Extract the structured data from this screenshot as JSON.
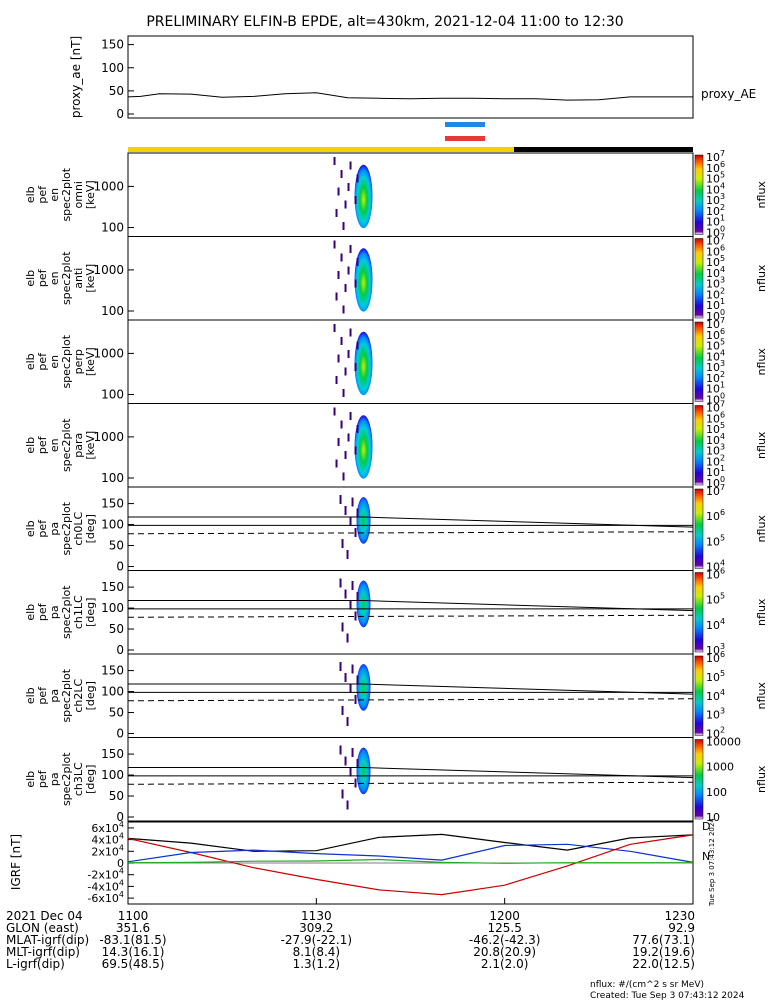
{
  "title": "PRELIMINARY ELFIN-B EPDE, alt=430km, 2021-12-04 11:00 to 12:30",
  "footer": {
    "line1": "nflux: #/(cm^2 s sr MeV)",
    "line2": "Created: Tue Sep  3 07:43:12 2024"
  },
  "side_stamp": "Tue Sep  3 07:43:12 2024",
  "colors": {
    "sci_zone_blue": "#1e88e5",
    "sci_zone_red": "#e53935",
    "orbit_day": "#f5d000",
    "orbit_night": "#000000",
    "igrf_black": "#000000",
    "igrf_red": "#cc0000",
    "igrf_blue": "#1030cc",
    "igrf_green": "#22aa22"
  },
  "chart_data": [
    {
      "type": "line",
      "panel": "proxy_ae",
      "ylabel": "proxy_ae [nT]",
      "yticks": [
        "0",
        "50",
        "100",
        "150"
      ],
      "ylim": [
        0,
        160
      ],
      "legend": "proxy_AE",
      "series": [
        {
          "name": "proxy_AE",
          "x": [
            0,
            2,
            5,
            10,
            15,
            20,
            25,
            30,
            35,
            40,
            45,
            50,
            55,
            60,
            65,
            70,
            75,
            80,
            85,
            90
          ],
          "values": [
            37,
            38,
            44,
            43,
            36,
            38,
            44,
            46,
            35,
            34,
            33,
            34,
            34,
            33,
            33,
            30,
            31,
            37,
            37,
            37
          ]
        }
      ]
    },
    {
      "type": "heatmap",
      "panel": "omni",
      "ylabel": "elb pef en spec2plot omni [keV]",
      "yticks": [
        "100",
        "1000"
      ],
      "colorbar": {
        "label": "nflux",
        "ticks": [
          "10^0",
          "10^1",
          "10^2",
          "10^3",
          "10^4",
          "10^5",
          "10^6",
          "10^7"
        ],
        "log_range": [
          0,
          7
        ]
      }
    },
    {
      "type": "heatmap",
      "panel": "anti",
      "ylabel": "elb pef en spec2plot anti [keV]",
      "yticks": [
        "100",
        "1000"
      ],
      "colorbar": {
        "label": "nflux",
        "ticks": [
          "10^0",
          "10^1",
          "10^2",
          "10^3",
          "10^4",
          "10^5",
          "10^6",
          "10^7"
        ],
        "log_range": [
          0,
          7
        ]
      }
    },
    {
      "type": "heatmap",
      "panel": "perp",
      "ylabel": "elb pef en spec2plot perp [keV]",
      "yticks": [
        "100",
        "1000"
      ],
      "colorbar": {
        "label": "nflux",
        "ticks": [
          "10^0",
          "10^1",
          "10^2",
          "10^3",
          "10^4",
          "10^5",
          "10^6",
          "10^7"
        ],
        "log_range": [
          0,
          7
        ]
      }
    },
    {
      "type": "heatmap",
      "panel": "para",
      "ylabel": "elb pef en spec2plot para [keV]",
      "yticks": [
        "100",
        "1000"
      ],
      "colorbar": {
        "label": "nflux",
        "ticks": [
          "10^0",
          "10^1",
          "10^2",
          "10^3",
          "10^4",
          "10^5",
          "10^6",
          "10^7"
        ],
        "log_range": [
          0,
          7
        ]
      }
    },
    {
      "type": "heatmap",
      "panel": "ch0LC",
      "ylabel": "elb pef pa spec2plot ch0LC [deg]",
      "yticks": [
        "0",
        "50",
        "100",
        "150"
      ],
      "ylim": [
        0,
        180
      ],
      "colorbar": {
        "label": "nflux",
        "ticks": [
          "10^4",
          "10^5",
          "10^6",
          "10^7"
        ],
        "log_range": [
          3.5,
          7
        ]
      }
    },
    {
      "type": "heatmap",
      "panel": "ch1LC",
      "ylabel": "elb pef pa spec2plot ch1LC [deg]",
      "yticks": [
        "0",
        "50",
        "100",
        "150"
      ],
      "ylim": [
        0,
        180
      ],
      "colorbar": {
        "label": "nflux",
        "ticks": [
          "10^3",
          "10^4",
          "10^5",
          "10^6"
        ],
        "log_range": [
          2.5,
          6.5
        ]
      }
    },
    {
      "type": "heatmap",
      "panel": "ch2LC",
      "ylabel": "elb pef pa spec2plot ch2LC [deg]",
      "yticks": [
        "0",
        "50",
        "100",
        "150"
      ],
      "ylim": [
        0,
        180
      ],
      "colorbar": {
        "label": "nflux",
        "ticks": [
          "10^2",
          "10^3",
          "10^4",
          "10^5",
          "10^6"
        ],
        "log_range": [
          2,
          6.5
        ]
      }
    },
    {
      "type": "heatmap",
      "panel": "ch3LC",
      "ylabel": "elb pef pa spec2plot ch3LC [deg]",
      "yticks": [
        "0",
        "50",
        "100",
        "150"
      ],
      "ylim": [
        0,
        180
      ],
      "colorbar": {
        "label": "nflux",
        "ticks": [
          "10",
          "100",
          "1000",
          "10000"
        ],
        "log_range": [
          1,
          4.5
        ]
      }
    },
    {
      "type": "line",
      "panel": "igrf",
      "ylabel": "IGRF [nT]",
      "yticks": [
        "-6x10^4",
        "-4x10^4",
        "-2x10^4",
        "0",
        "2x10^4",
        "4x10^4",
        "6x10^4"
      ],
      "ylim": [
        -65000,
        65000
      ],
      "series": [
        {
          "x": [
            0,
            10,
            20,
            30,
            40,
            50,
            60,
            70,
            80,
            90
          ],
          "values": [
            42000,
            34000,
            20000,
            21000,
            44000,
            49000,
            35000,
            22000,
            43000,
            48000
          ]
        },
        {
          "x": [
            0,
            10,
            20,
            30,
            40,
            50,
            60,
            70,
            80,
            90
          ],
          "values": [
            42000,
            18000,
            -8000,
            -28000,
            -46000,
            -54000,
            -38000,
            -5000,
            32000,
            48000
          ]
        },
        {
          "x": [
            0,
            10,
            20,
            30,
            40,
            50,
            60,
            70,
            80,
            90
          ],
          "values": [
            2000,
            18000,
            22000,
            16000,
            12000,
            5000,
            30000,
            32000,
            20000,
            1000
          ]
        },
        {
          "x": [
            0,
            10,
            20,
            30,
            40,
            50,
            60,
            70,
            80,
            90
          ],
          "values": [
            500,
            1000,
            3000,
            3500,
            6000,
            1000,
            -500,
            500,
            500,
            500
          ]
        }
      ]
    }
  ],
  "x_axis": {
    "tick_labels": [
      "1100",
      "1130",
      "1200",
      "1230"
    ],
    "rows": [
      {
        "label": "2021 Dec 04",
        "values": [
          "1100",
          "1130",
          "1200",
          "1230"
        ]
      },
      {
        "label": "GLON (east)",
        "values": [
          "351.6",
          "309.2",
          "125.5",
          "92.9"
        ]
      },
      {
        "label": "MLAT-igrf(dip)",
        "values": [
          "-83.1(81.5)",
          "-27.9(-22.1)",
          "-46.2(-42.3)",
          "77.6(73.1)"
        ]
      },
      {
        "label": "MLT-igrf(dip)",
        "values": [
          "14.3(16.1)",
          "8.1(8.4)",
          "20.8(20.9)",
          "19.2(19.6)"
        ]
      },
      {
        "label": "L-igrf(dip)",
        "values": [
          "69.5(48.5)",
          "1.3(1.2)",
          "2.1(2.0)",
          "22.0(12.5)"
        ]
      }
    ]
  }
}
